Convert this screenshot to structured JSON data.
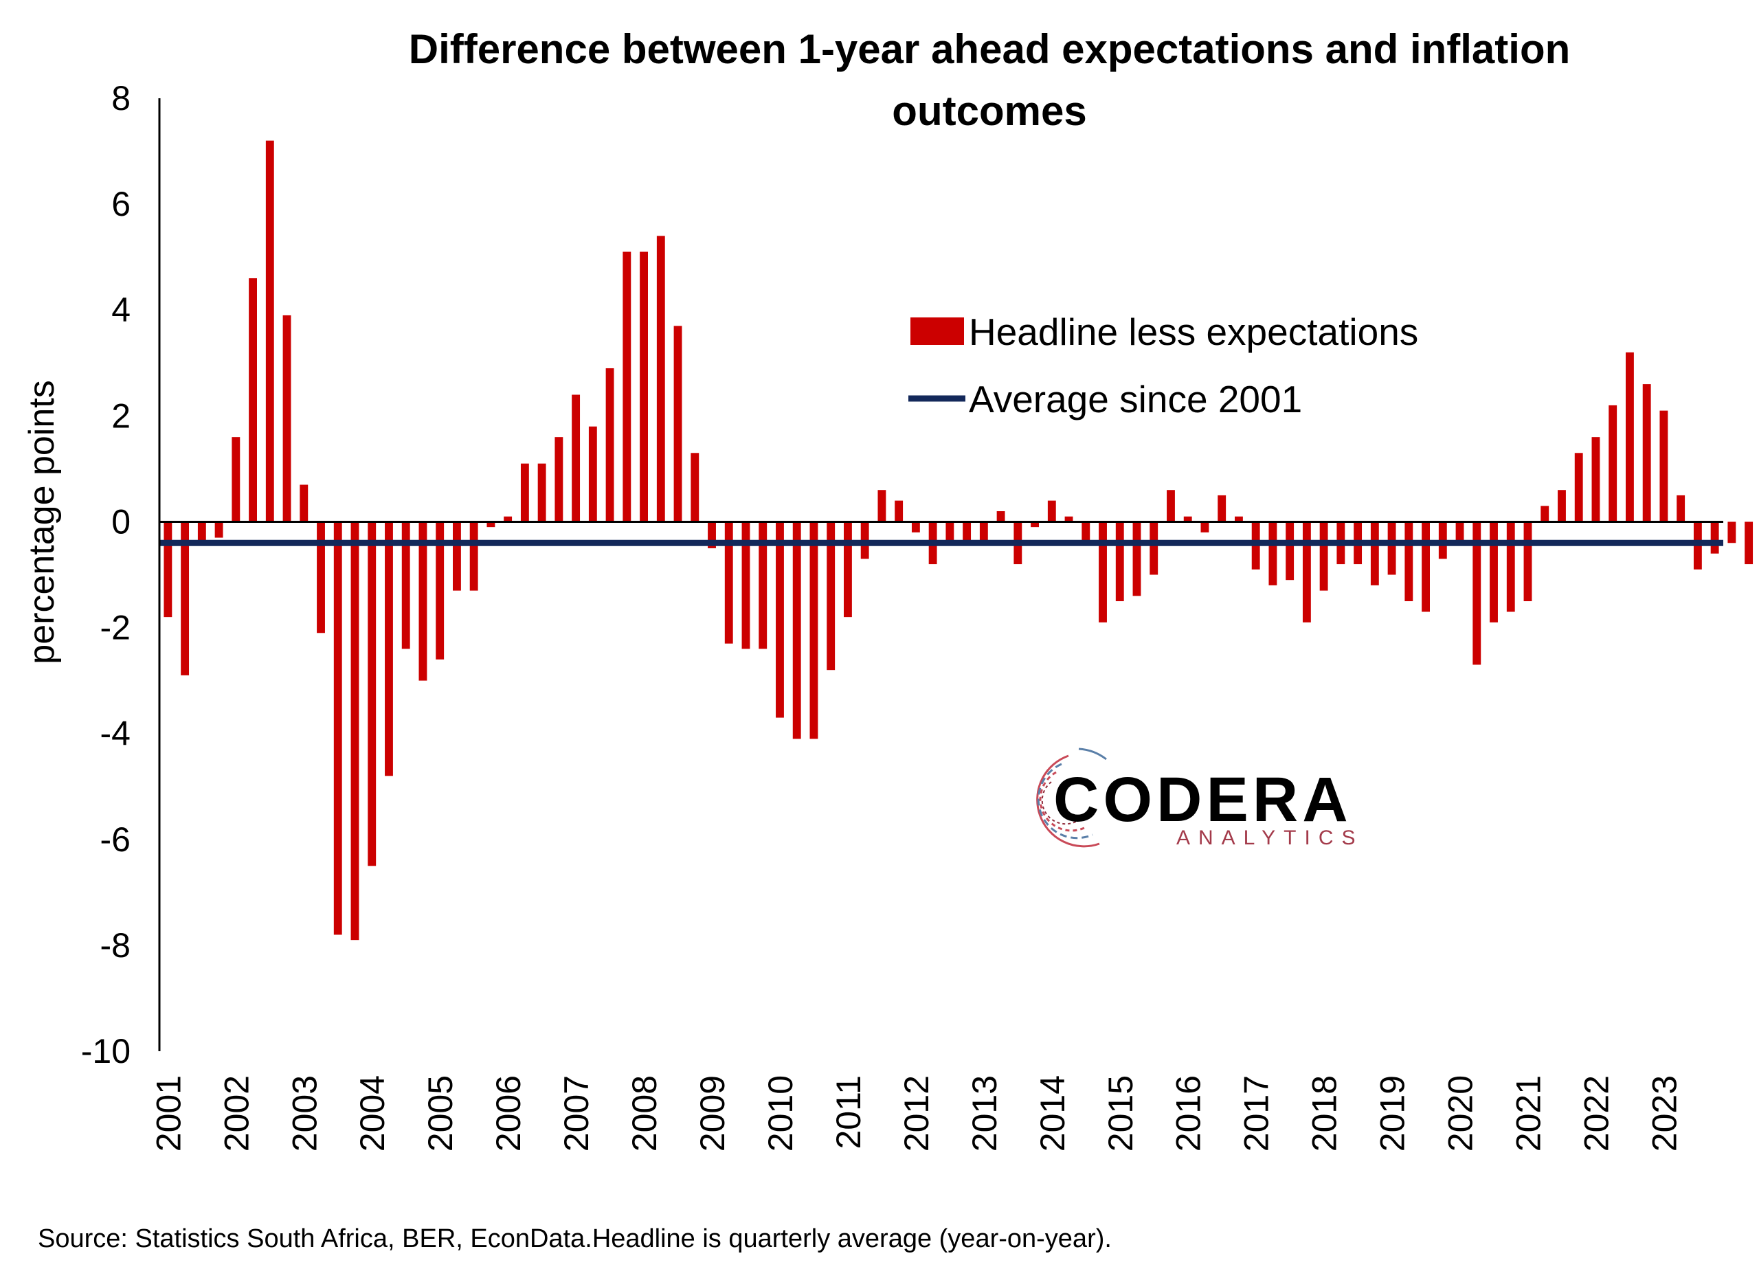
{
  "chart_data": {
    "type": "bar",
    "title": [
      "Difference between 1-year ahead expectations and inflation",
      "outcomes"
    ],
    "ylabel": "percentage points",
    "xlabel": "",
    "ylim": [
      -10,
      8
    ],
    "yticks": [
      8,
      6,
      4,
      2,
      0,
      -2,
      -4,
      -6,
      -8,
      -10
    ],
    "xtick_labels": [
      "2001",
      "2002",
      "2003",
      "2004",
      "2005",
      "2006",
      "2007",
      "2008",
      "2009",
      "2010",
      "2011",
      "2012",
      "2013",
      "2014",
      "2015",
      "2016",
      "2017",
      "2018",
      "2019",
      "2020",
      "2021",
      "2022",
      "2023"
    ],
    "start_year": 2001,
    "periods_per_year": 4,
    "series": [
      {
        "name": "Headline less expectations",
        "type": "bar",
        "color": "#cc0000",
        "values": [
          -1.8,
          -2.9,
          -0.4,
          -0.3,
          1.6,
          4.6,
          7.2,
          3.9,
          0.7,
          -2.1,
          -7.8,
          -7.9,
          -6.5,
          -4.8,
          -2.4,
          -3.0,
          -2.6,
          -1.3,
          -1.3,
          -0.1,
          0.1,
          1.1,
          1.1,
          1.6,
          2.4,
          1.8,
          2.9,
          5.1,
          5.1,
          5.4,
          3.7,
          1.3,
          -0.5,
          -2.3,
          -2.4,
          -2.4,
          -3.7,
          -4.1,
          -4.1,
          -2.8,
          -1.8,
          -0.7,
          0.6,
          0.4,
          -0.2,
          -0.8,
          -0.4,
          -0.4,
          -0.4,
          0.2,
          -0.8,
          -0.1,
          0.4,
          0.1,
          -0.4,
          -1.9,
          -1.5,
          -1.4,
          -1.0,
          0.6,
          0.1,
          -0.2,
          0.5,
          0.1,
          -0.9,
          -1.2,
          -1.1,
          -1.9,
          -1.3,
          -0.8,
          -0.8,
          -1.2,
          -1.0,
          -1.5,
          -1.7,
          -0.7,
          -0.4,
          -2.7,
          -1.9,
          -1.7,
          -1.5,
          0.3,
          0.6,
          1.3,
          1.6,
          2.2,
          3.2,
          2.6,
          2.1,
          0.5,
          -0.9,
          -0.6,
          -0.4,
          -0.8
        ]
      },
      {
        "name": "Average since 2001",
        "type": "line",
        "color": "#13285a",
        "value": -0.4
      }
    ],
    "legend_position": "upper-right",
    "grid": false
  },
  "source_note": "Source: Statistics South Africa, BER, EconData.Headline is quarterly average (year-on-year).",
  "logo": {
    "name": "CODERA",
    "tagline": "ANALYTICS",
    "icon": "codera-circuit-ring-icon"
  }
}
